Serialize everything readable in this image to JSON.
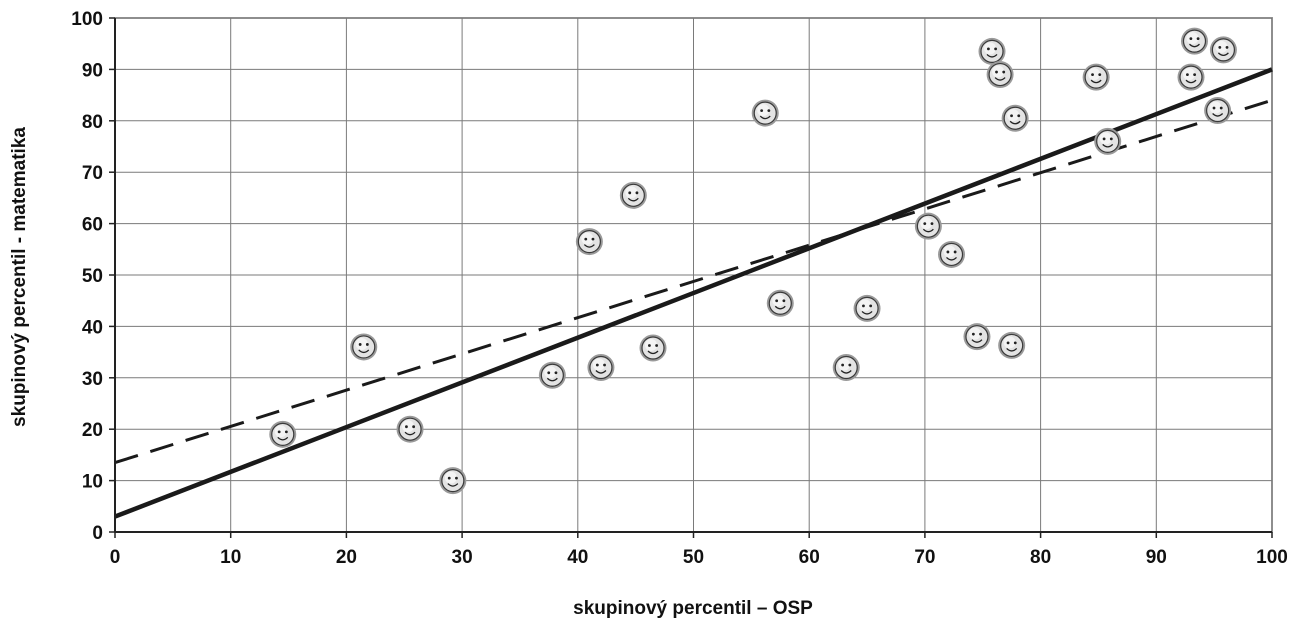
{
  "chart_data": {
    "type": "scatter",
    "title": "",
    "xlabel": "skupinový percentil – OSP",
    "ylabel": "skupinový percentil - matematika",
    "xlim": [
      0,
      100
    ],
    "ylim": [
      0,
      100
    ],
    "xticks": [
      0,
      10,
      20,
      30,
      40,
      50,
      60,
      70,
      80,
      90,
      100
    ],
    "yticks": [
      0,
      10,
      20,
      30,
      40,
      50,
      60,
      70,
      80,
      90,
      100
    ],
    "grid": true,
    "legend": "none",
    "marker": "smiley-face",
    "series": [
      {
        "points": [
          {
            "x": 14.5,
            "y": 19
          },
          {
            "x": 21.5,
            "y": 36
          },
          {
            "x": 25.5,
            "y": 20
          },
          {
            "x": 29.2,
            "y": 10
          },
          {
            "x": 37.8,
            "y": 30.5
          },
          {
            "x": 41,
            "y": 56.5
          },
          {
            "x": 42,
            "y": 32
          },
          {
            "x": 44.8,
            "y": 65.5
          },
          {
            "x": 46.5,
            "y": 35.8
          },
          {
            "x": 56.2,
            "y": 81.5
          },
          {
            "x": 57.5,
            "y": 44.5
          },
          {
            "x": 63.2,
            "y": 32
          },
          {
            "x": 65,
            "y": 43.5
          },
          {
            "x": 70.3,
            "y": 59.5
          },
          {
            "x": 72.3,
            "y": 54
          },
          {
            "x": 74.5,
            "y": 38
          },
          {
            "x": 75.8,
            "y": 93.5
          },
          {
            "x": 76.5,
            "y": 89
          },
          {
            "x": 77.5,
            "y": 36.3
          },
          {
            "x": 77.8,
            "y": 80.5
          },
          {
            "x": 84.8,
            "y": 88.5
          },
          {
            "x": 85.8,
            "y": 76
          },
          {
            "x": 93,
            "y": 88.5
          },
          {
            "x": 93.3,
            "y": 95.5
          },
          {
            "x": 95.3,
            "y": 82
          },
          {
            "x": 95.8,
            "y": 93.8
          }
        ]
      }
    ],
    "lines": [
      {
        "style": "solid",
        "x": [
          0,
          100
        ],
        "y": [
          3,
          90
        ]
      },
      {
        "style": "dashed",
        "x": [
          0,
          100
        ],
        "y": [
          13.5,
          84
        ]
      }
    ]
  }
}
